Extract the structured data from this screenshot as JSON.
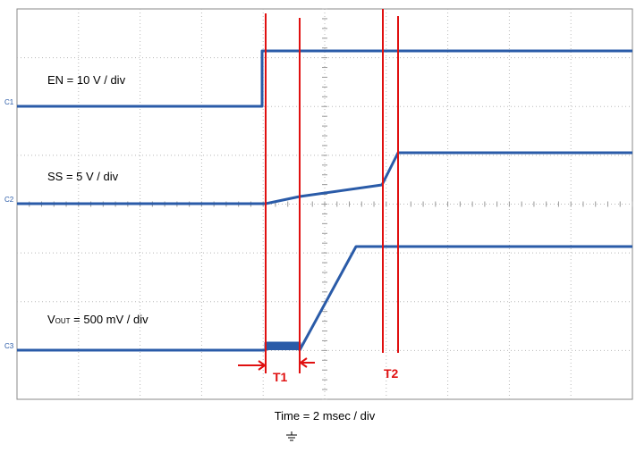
{
  "channels": {
    "c1": {
      "marker": "C1",
      "label": "EN = 10 V / div"
    },
    "c2": {
      "marker": "C2",
      "label": "SS = 5 V / div"
    },
    "c3": {
      "marker": "C3",
      "label_symbol": "V",
      "label_subscript": "OUT",
      "label_rest": " = 500 mV / div"
    }
  },
  "markers": {
    "t1": "T1",
    "t2": "T2"
  },
  "timebase": "Time = 2 msec / div"
}
